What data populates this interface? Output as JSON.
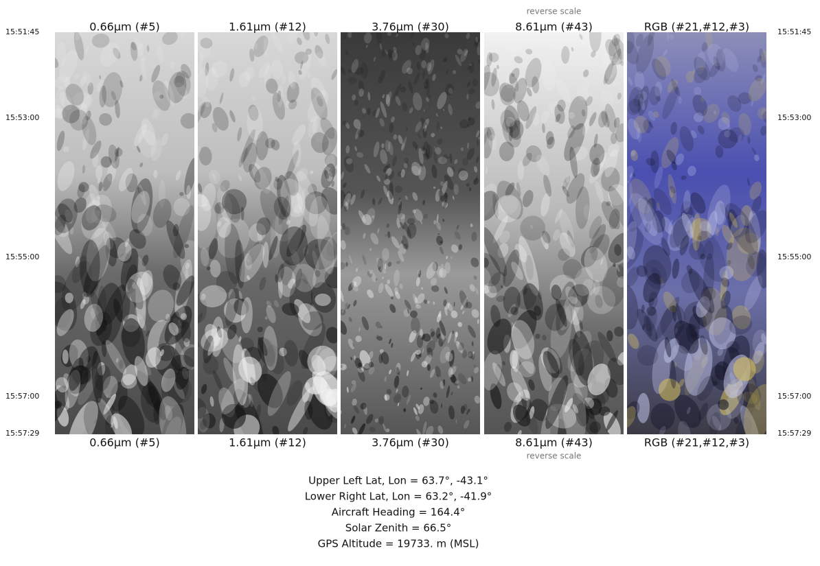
{
  "panels": [
    {
      "label": "0.66μm (#5)"
    },
    {
      "label": "1.61μm (#12)"
    },
    {
      "label": "3.76μm (#30)"
    },
    {
      "label": "8.61μm (#43)",
      "note": "reverse scale"
    },
    {
      "label": "RGB (#21,#12,#3)"
    }
  ],
  "times": [
    "15:51:45",
    "15:53:00",
    "15:55:00",
    "15:57:00",
    "15:57:29"
  ],
  "info": [
    "Upper Left Lat, Lon =   63.7°,  -43.1°",
    "Lower Right Lat, Lon =   63.2°,  -41.9°",
    "Aircraft Heading =  164.4°",
    "Solar Zenith =   66.5°",
    "GPS Altitude =  19733. m (MSL)"
  ]
}
